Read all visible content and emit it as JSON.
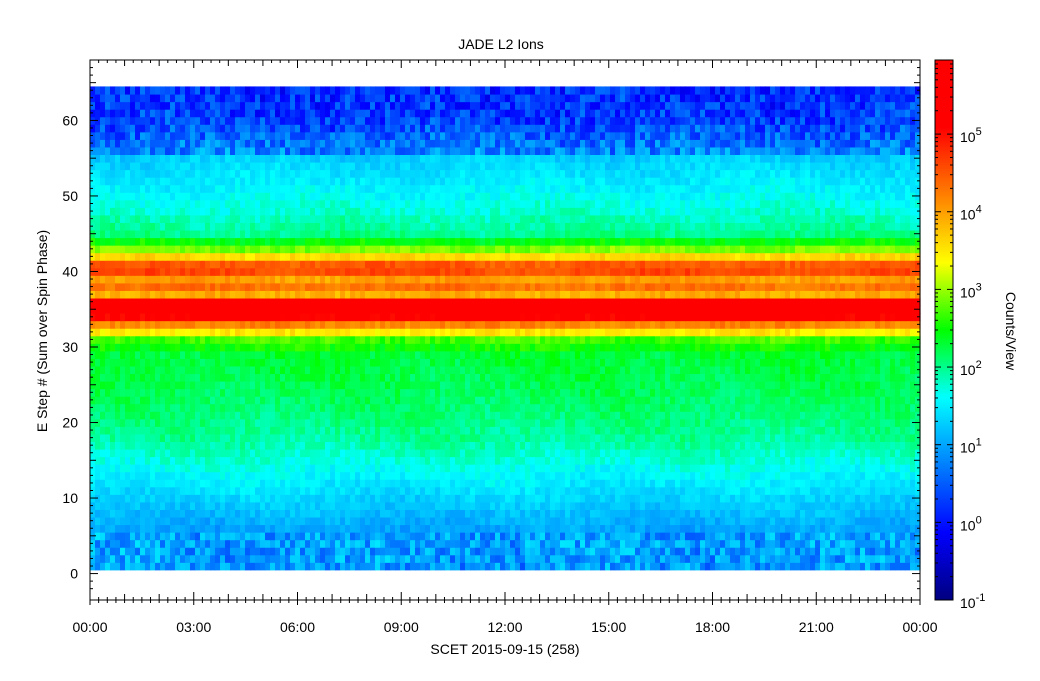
{
  "chart_data": {
    "type": "heatmap",
    "title": "JADE L2 Ions",
    "xlabel": "SCET 2015-09-15 (258)",
    "ylabel": "E Step # (Sum over Spin Phase)",
    "colorbar_label": "Counts/View",
    "xlim_hours": [
      0,
      24
    ],
    "ylim": [
      -3.5,
      68
    ],
    "data_extent": {
      "x_hours": [
        0,
        24
      ],
      "estep": [
        1,
        64
      ]
    },
    "x_ticks": [
      {
        "hour": 0,
        "label": "00:00"
      },
      {
        "hour": 3,
        "label": "03:00"
      },
      {
        "hour": 6,
        "label": "06:00"
      },
      {
        "hour": 9,
        "label": "09:00"
      },
      {
        "hour": 12,
        "label": "12:00"
      },
      {
        "hour": 15,
        "label": "15:00"
      },
      {
        "hour": 18,
        "label": "18:00"
      },
      {
        "hour": 21,
        "label": "21:00"
      },
      {
        "hour": 24,
        "label": "00:00"
      }
    ],
    "y_ticks": [
      0,
      10,
      20,
      30,
      40,
      50,
      60
    ],
    "color_scale": "log",
    "color_range": [
      0.1,
      900000
    ],
    "colorbar_ticks": [
      {
        "value": 0.1,
        "base": "10",
        "exp": "-1"
      },
      {
        "value": 1,
        "base": "10",
        "exp": "0"
      },
      {
        "value": 10,
        "base": "10",
        "exp": "1"
      },
      {
        "value": 100,
        "base": "10",
        "exp": "2"
      },
      {
        "value": 1000,
        "base": "10",
        "exp": "3"
      },
      {
        "value": 10000,
        "base": "10",
        "exp": "4"
      },
      {
        "value": 100000,
        "base": "10",
        "exp": "5"
      }
    ],
    "colormap": [
      "#00007f",
      "#0000ff",
      "#007fff",
      "#00ffff",
      "#00ff00",
      "#ffff00",
      "#ff7f00",
      "#ff0000",
      "#ff0000"
    ],
    "estep_profile_counts": [
      {
        "estep": 1,
        "counts": 8
      },
      {
        "estep": 6,
        "counts": 10
      },
      {
        "estep": 12,
        "counts": 30
      },
      {
        "estep": 18,
        "counts": 90
      },
      {
        "estep": 24,
        "counts": 150
      },
      {
        "estep": 29,
        "counts": 200
      },
      {
        "estep": 31,
        "counts": 500
      },
      {
        "estep": 32,
        "counts": 3000
      },
      {
        "estep": 33,
        "counts": 15000
      },
      {
        "estep": 34,
        "counts": 150000
      },
      {
        "estep": 35,
        "counts": 350000
      },
      {
        "estep": 36,
        "counts": 200000
      },
      {
        "estep": 37,
        "counts": 8000
      },
      {
        "estep": 38,
        "counts": 20000
      },
      {
        "estep": 39,
        "counts": 10000
      },
      {
        "estep": 40,
        "counts": 40000
      },
      {
        "estep": 41,
        "counts": 30000
      },
      {
        "estep": 42,
        "counts": 4000
      },
      {
        "estep": 43,
        "counts": 800
      },
      {
        "estep": 45,
        "counts": 100
      },
      {
        "estep": 50,
        "counts": 40
      },
      {
        "estep": 55,
        "counts": 20
      },
      {
        "estep": 56,
        "counts": 6
      },
      {
        "estep": 60,
        "counts": 2
      },
      {
        "estep": 64,
        "counts": 1.5
      }
    ]
  }
}
